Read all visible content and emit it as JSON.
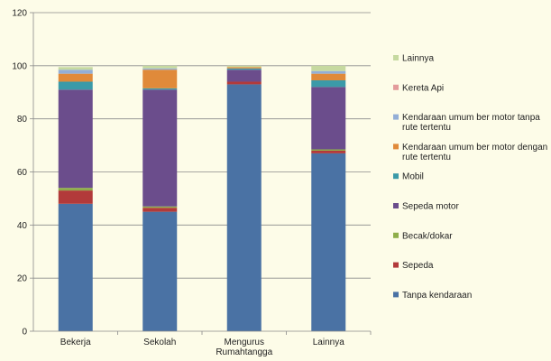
{
  "chart_data": {
    "type": "bar",
    "stacked": true,
    "ylim": [
      0,
      120
    ],
    "yticks": [
      0,
      20,
      40,
      60,
      80,
      100,
      120
    ],
    "categories": [
      {
        "lines": [
          "Bekerja"
        ]
      },
      {
        "lines": [
          "Sekolah"
        ]
      },
      {
        "lines": [
          "Mengurus",
          "Rumahtangga"
        ]
      },
      {
        "lines": [
          "Lainnya"
        ]
      }
    ],
    "series": [
      {
        "name": "Tanpa kendaraan",
        "color": "#4a72a4",
        "values": [
          48,
          45,
          93,
          67
        ]
      },
      {
        "name": "Sepeda",
        "color": "#b23a3a",
        "values": [
          5,
          1.5,
          1,
          1
        ]
      },
      {
        "name": "Becak/dokar",
        "color": "#8fae4a",
        "values": [
          1,
          0.5,
          0,
          0.5
        ]
      },
      {
        "name": "Sepeda motor",
        "color": "#6b4d8c",
        "values": [
          37,
          44,
          4.5,
          23.5
        ]
      },
      {
        "name": "Mobil",
        "color": "#3b9aa8",
        "values": [
          3,
          0.5,
          0.5,
          2.5
        ]
      },
      {
        "name": "Kendaraan umum ber motor dengan rute tertentu",
        "color": "#e08a3a",
        "values": [
          3,
          7,
          0.5,
          2.5
        ]
      },
      {
        "name": "Kendaraan umum ber motor tanpa rute tertentu",
        "color": "#93aed6",
        "values": [
          1.5,
          0.5,
          0,
          1
        ]
      },
      {
        "name": "Kereta Api",
        "color": "#e39b9b",
        "values": [
          0,
          0,
          0,
          0
        ]
      },
      {
        "name": "Lainnya",
        "color": "#c6d9a0",
        "values": [
          1,
          1,
          0.5,
          2
        ]
      }
    ],
    "legend": [
      {
        "lines": [
          "Lainnya"
        ],
        "color": "#c6d9a0"
      },
      {
        "lines": [
          "Kereta Api"
        ],
        "color": "#e39b9b"
      },
      {
        "lines": [
          "Kendaraan umum ber motor tanpa",
          "rute tertentu"
        ],
        "color": "#93aed6"
      },
      {
        "lines": [
          "Kendaraan umum ber motor dengan",
          "rute tertentu"
        ],
        "color": "#e08a3a"
      },
      {
        "lines": [
          "Mobil"
        ],
        "color": "#3b9aa8"
      },
      {
        "lines": [
          "Sepeda motor"
        ],
        "color": "#6b4d8c"
      },
      {
        "lines": [
          "Becak/dokar"
        ],
        "color": "#8fae4a"
      },
      {
        "lines": [
          "Sepeda"
        ],
        "color": "#b23a3a"
      },
      {
        "lines": [
          "Tanpa kendaraan"
        ],
        "color": "#4a72a4"
      }
    ],
    "legend_position": "right",
    "grid": true,
    "colors": {
      "grid": "#8a8a8a",
      "axis": "#8a8a8a",
      "background": "#fdfce8"
    }
  }
}
